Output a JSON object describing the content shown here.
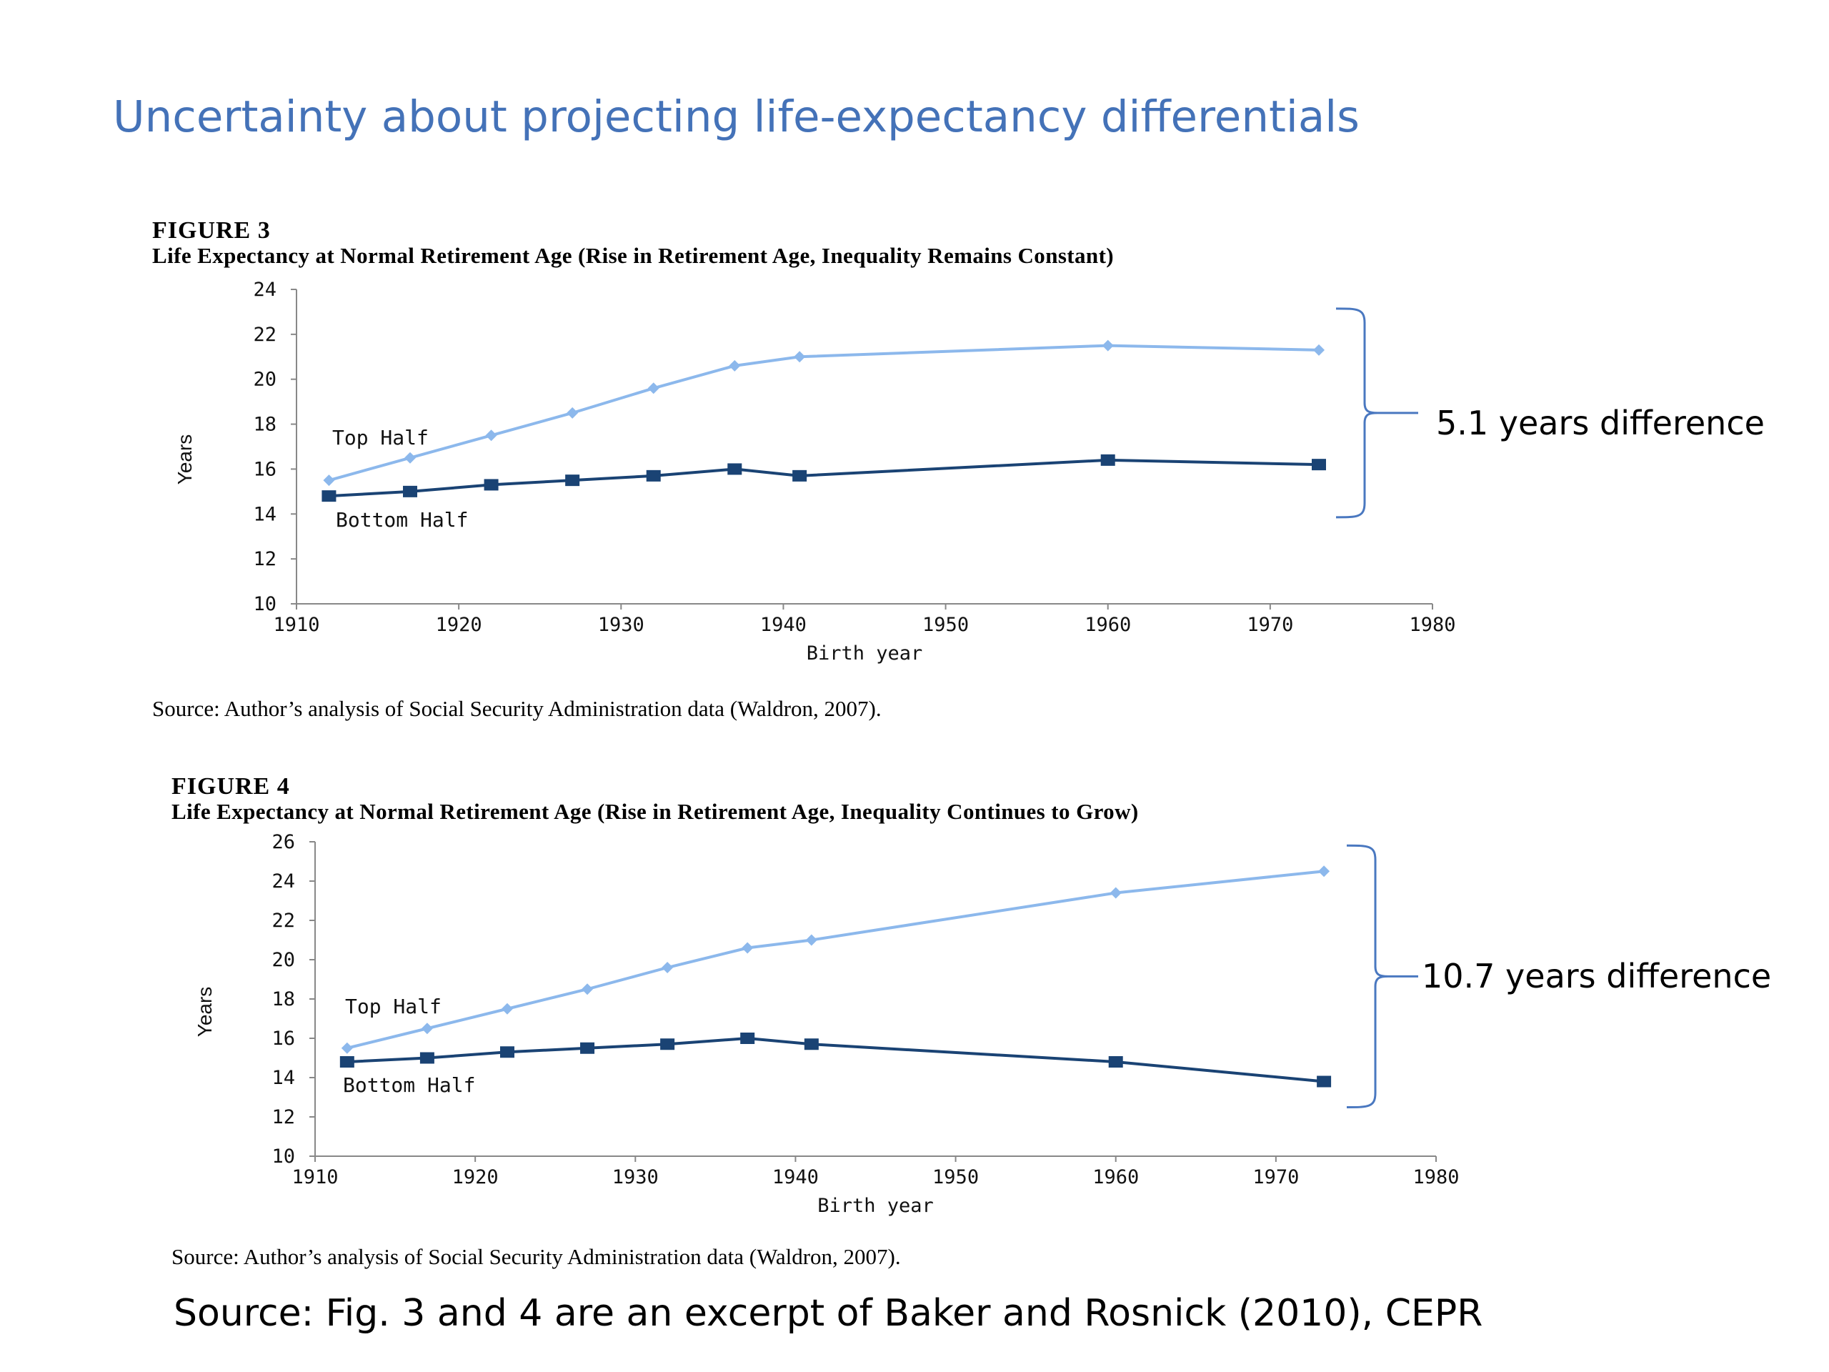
{
  "slide": {
    "title": "Uncertainty about projecting life-expectancy differentials",
    "source": "Source: Fig. 3 and 4 are an excerpt of Baker and Rosnick (2010), CEPR"
  },
  "colors": {
    "title": "#4472b8",
    "top_half": "#8cb8ec",
    "bottom_half": "#1a4374"
  },
  "figures": [
    {
      "number": "FIGURE 3",
      "caption": "Life Expectancy at Normal Retirement Age (Rise in Retirement Age, Inequality Remains Constant)",
      "source": "Source: Author’s analysis of Social Security Administration data (Waldron, 2007).",
      "bracket_label": "5.1 years difference"
    },
    {
      "number": "FIGURE 4",
      "caption": "Life Expectancy at Normal Retirement Age (Rise in Retirement Age, Inequality Continues to Grow)",
      "source": "Source: Author’s analysis of Social Security Administration data (Waldron, 2007).",
      "bracket_label": "10.7 years difference"
    }
  ],
  "chart_data": [
    {
      "type": "line",
      "xlabel": "Birth year",
      "ylabel": "Years",
      "xlim": [
        1910,
        1980
      ],
      "ylim": [
        10,
        24
      ],
      "xticks": [
        1910,
        1920,
        1930,
        1940,
        1950,
        1960,
        1970,
        1980
      ],
      "yticks": [
        10,
        12,
        14,
        16,
        18,
        20,
        22,
        24
      ],
      "grid": false,
      "series": [
        {
          "name": "Top Half",
          "marker": "diamond",
          "x": [
            1912,
            1917,
            1922,
            1927,
            1932,
            1937,
            1941,
            1960,
            1973
          ],
          "y": [
            15.5,
            16.5,
            17.5,
            18.5,
            19.6,
            20.6,
            21.0,
            21.5,
            21.3
          ]
        },
        {
          "name": "Bottom Half",
          "marker": "square",
          "x": [
            1912,
            1917,
            1922,
            1927,
            1932,
            1937,
            1941,
            1960,
            1973
          ],
          "y": [
            14.8,
            15.0,
            15.3,
            15.5,
            15.7,
            16.0,
            15.7,
            16.4,
            16.2
          ]
        }
      ]
    },
    {
      "type": "line",
      "xlabel": "Birth year",
      "ylabel": "Years",
      "xlim": [
        1910,
        1980
      ],
      "ylim": [
        10,
        26
      ],
      "xticks": [
        1910,
        1920,
        1930,
        1940,
        1950,
        1960,
        1970,
        1980
      ],
      "yticks": [
        10,
        12,
        14,
        16,
        18,
        20,
        22,
        24,
        26
      ],
      "grid": false,
      "series": [
        {
          "name": "Top Half",
          "marker": "diamond",
          "x": [
            1912,
            1917,
            1922,
            1927,
            1932,
            1937,
            1941,
            1960,
            1973
          ],
          "y": [
            15.5,
            16.5,
            17.5,
            18.5,
            19.6,
            20.6,
            21.0,
            23.4,
            24.5
          ]
        },
        {
          "name": "Bottom Half",
          "marker": "square",
          "x": [
            1912,
            1917,
            1922,
            1927,
            1932,
            1937,
            1941,
            1960,
            1973
          ],
          "y": [
            14.8,
            15.0,
            15.3,
            15.5,
            15.7,
            16.0,
            15.7,
            14.8,
            13.8
          ]
        }
      ]
    }
  ]
}
